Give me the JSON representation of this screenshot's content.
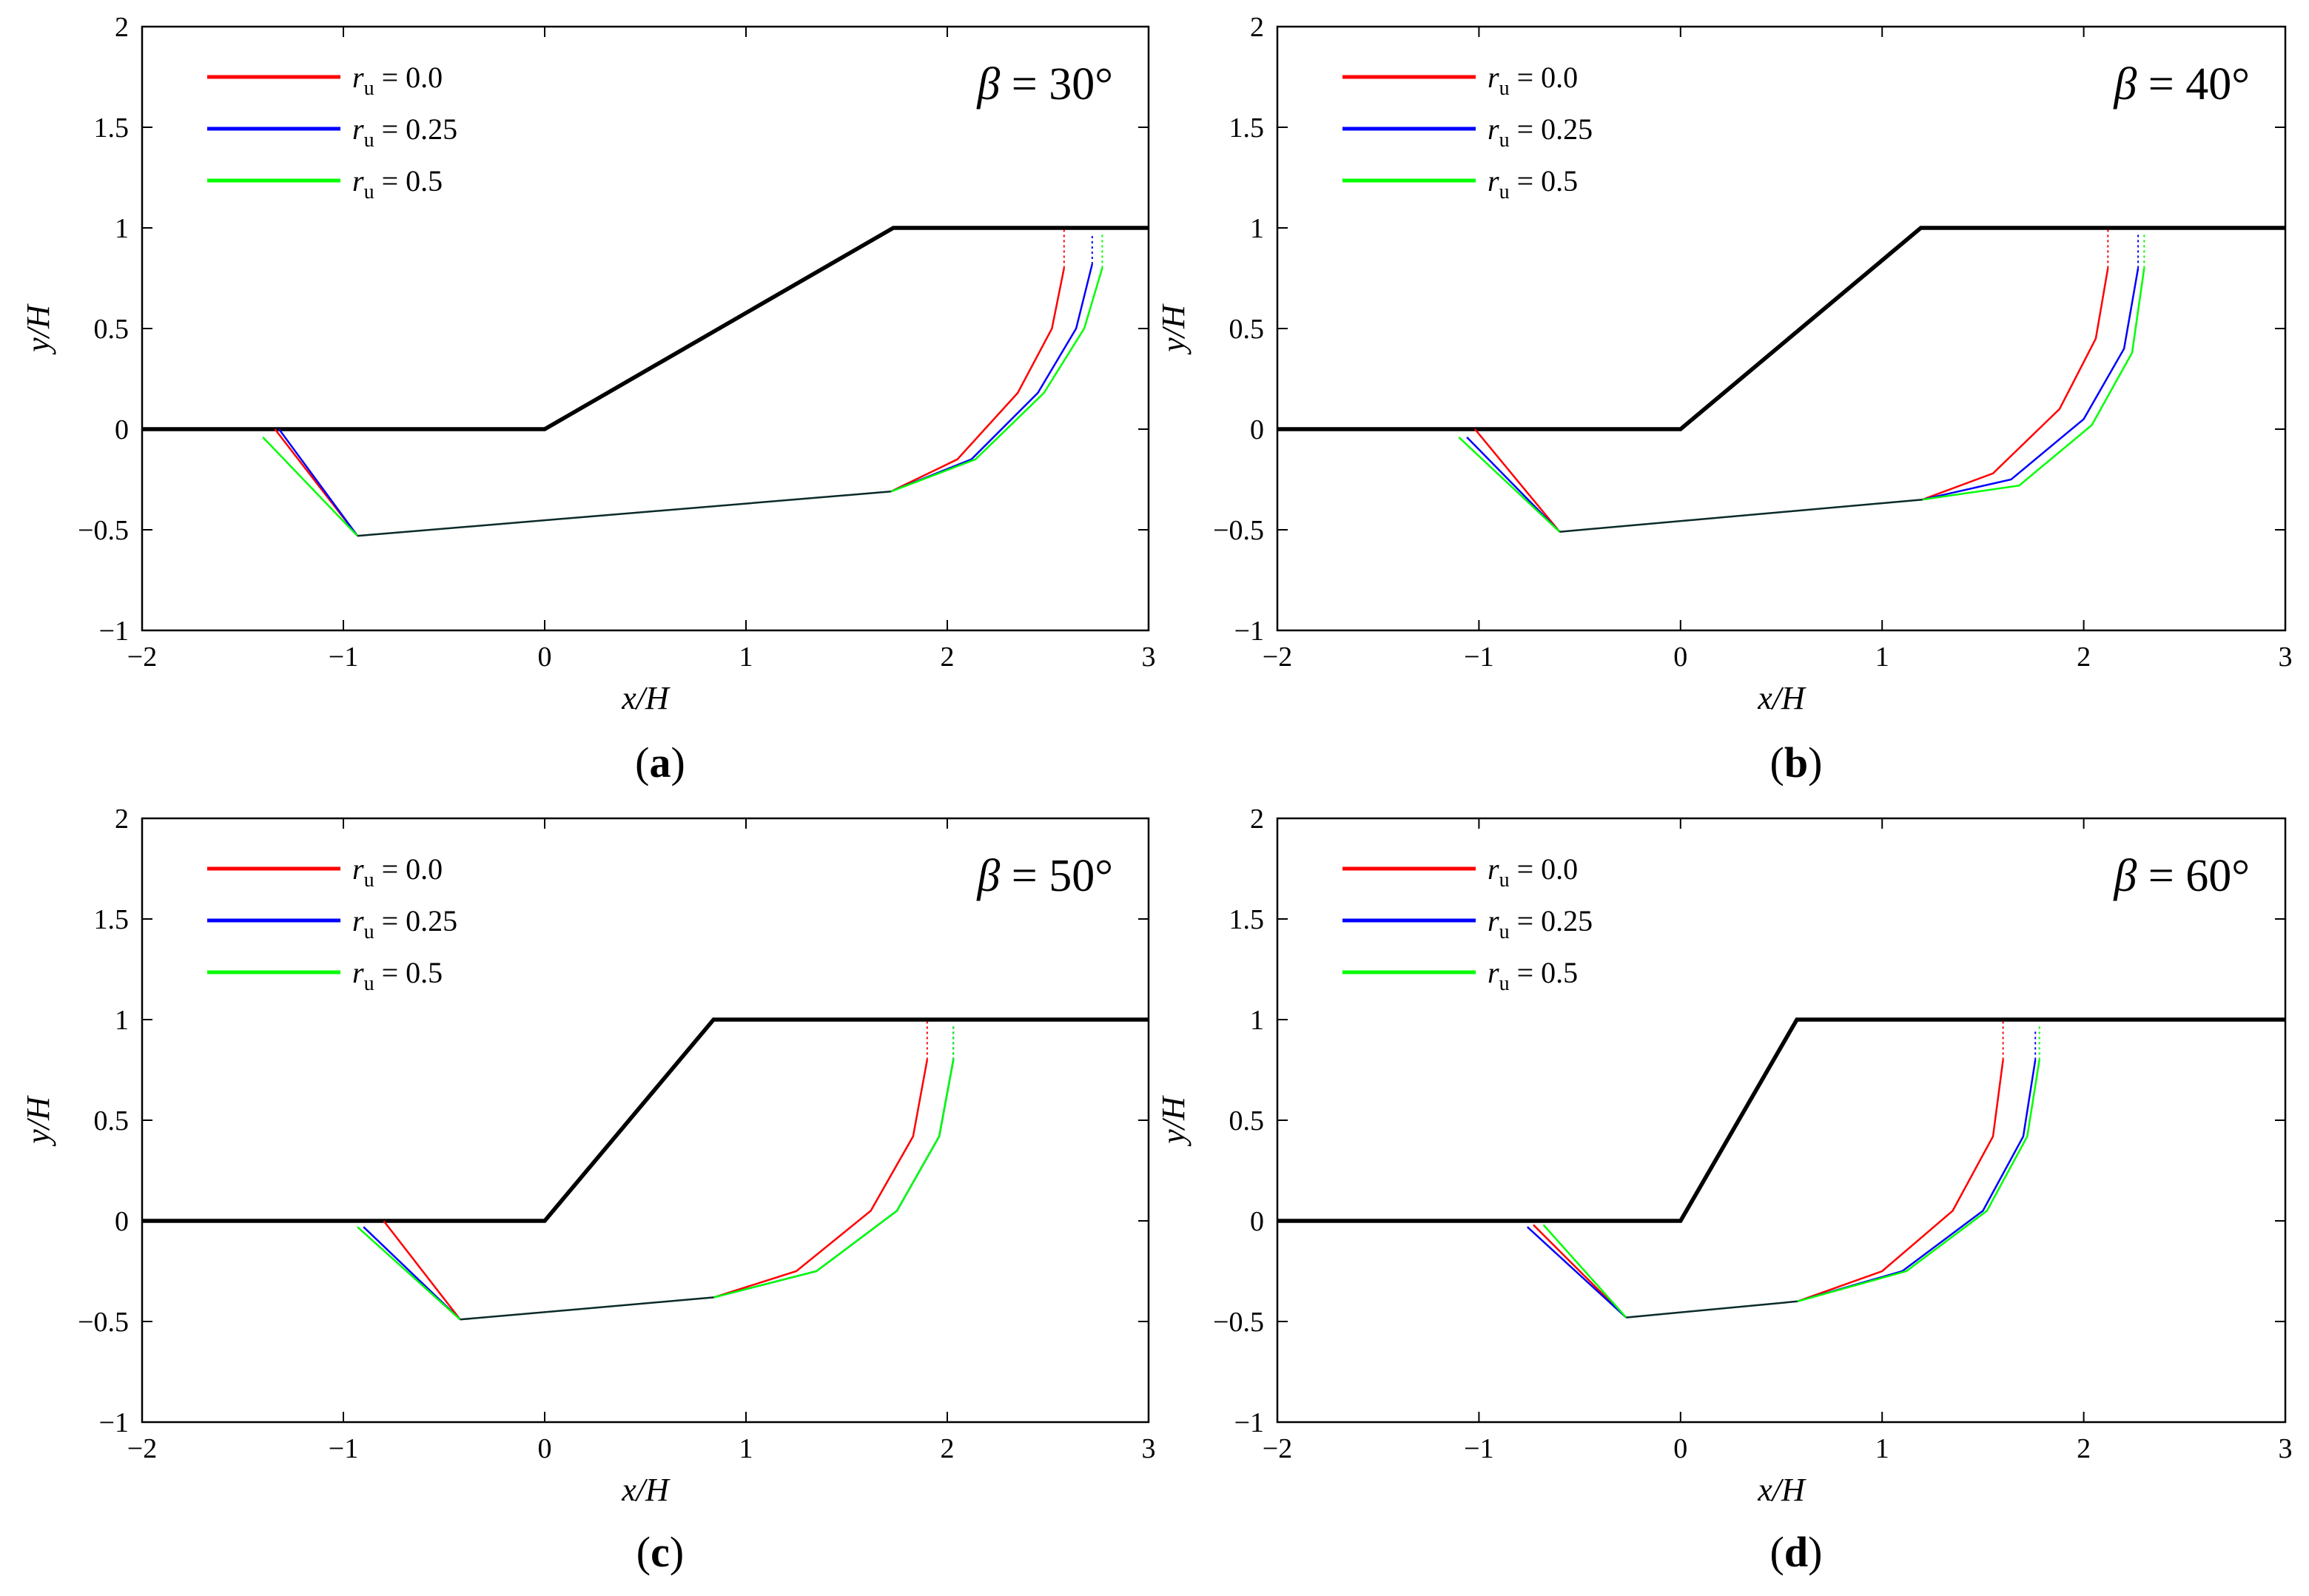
{
  "figure": {
    "panels_meta": {
      "xlabel": "x/H",
      "ylabel": "y/H",
      "xlim": [
        -2,
        3
      ],
      "ylim": [
        -1,
        2
      ],
      "x_ticks": [
        -2,
        -1,
        0,
        1,
        2,
        3
      ],
      "y_ticks": [
        -1,
        -0.5,
        0,
        0.5,
        1,
        1.5,
        2
      ],
      "x_tick_labels": [
        "−2",
        "−1",
        "0",
        "1",
        "2",
        "3"
      ],
      "y_tick_labels": [
        "−1",
        "−0.5",
        "0",
        "0.5",
        "1",
        "1.5",
        "2"
      ]
    },
    "legend": [
      {
        "symbol": "r",
        "subscript": "u",
        "text": " = 0.0",
        "color": "#ff0000"
      },
      {
        "symbol": "r",
        "subscript": "u",
        "text": " = 0.25",
        "color": "#0000ff"
      },
      {
        "symbol": "r",
        "subscript": "u",
        "text": " = 0.5",
        "color": "#00ff00"
      }
    ],
    "colors": {
      "slope": "#000000",
      "ru_0": "#ff0000",
      "ru_025": "#0000ff",
      "ru_05": "#00ff00",
      "overlap": "#0a2a2a"
    }
  },
  "chart_data": [
    {
      "type": "line",
      "panel_label": "(a)",
      "title_symbol": "β",
      "title_value": " = 30°",
      "xlabel": "x/H",
      "ylabel": "y/H",
      "xlim": [
        -2,
        3
      ],
      "ylim": [
        -1,
        2
      ],
      "slope": {
        "x": [
          -2,
          0,
          1.732,
          3
        ],
        "y": [
          0,
          0,
          1,
          1
        ]
      },
      "series": [
        {
          "name": "ru = 0.0",
          "color": "#ff0000",
          "toe_line": {
            "x": [
              -1.34,
              -0.93
            ],
            "y": [
              0,
              -0.53
            ]
          },
          "arc": {
            "x": [
              1.72,
              2.05,
              2.35,
              2.52,
              2.58
            ],
            "y": [
              -0.31,
              -0.15,
              0.18,
              0.5,
              0.8
            ]
          },
          "crack": {
            "x": [
              2.58,
              2.58
            ],
            "y": [
              0.8,
              1.0
            ]
          }
        },
        {
          "name": "ru = 0.25",
          "color": "#0000ff",
          "toe_line": {
            "x": [
              -1.32,
              -0.93
            ],
            "y": [
              0,
              -0.53
            ]
          },
          "arc": {
            "x": [
              1.72,
              2.12,
              2.45,
              2.64,
              2.72
            ],
            "y": [
              -0.31,
              -0.15,
              0.18,
              0.5,
              0.82
            ]
          },
          "crack": {
            "x": [
              2.72,
              2.72
            ],
            "y": [
              0.82,
              0.97
            ]
          }
        },
        {
          "name": "ru = 0.5",
          "color": "#00ff00",
          "toe_line": {
            "x": [
              -1.4,
              -0.93
            ],
            "y": [
              -0.04,
              -0.53
            ]
          },
          "arc": {
            "x": [
              1.72,
              2.14,
              2.48,
              2.68,
              2.77
            ],
            "y": [
              -0.31,
              -0.15,
              0.18,
              0.5,
              0.8
            ]
          },
          "crack": {
            "x": [
              2.77,
              2.77
            ],
            "y": [
              0.8,
              0.97
            ]
          }
        }
      ],
      "slip_base": {
        "x": [
          -0.93,
          1.72
        ],
        "y": [
          -0.53,
          -0.31
        ]
      }
    },
    {
      "type": "line",
      "panel_label": "(b)",
      "title_symbol": "β",
      "title_value": " = 40°",
      "xlabel": "x/H",
      "ylabel": "y/H",
      "xlim": [
        -2,
        3
      ],
      "ylim": [
        -1,
        2
      ],
      "slope": {
        "x": [
          -2,
          0,
          1.192,
          3
        ],
        "y": [
          0,
          0,
          1,
          1
        ]
      },
      "series": [
        {
          "name": "ru = 0.0",
          "color": "#ff0000",
          "toe_line": {
            "x": [
              -1.02,
              -0.6
            ],
            "y": [
              0,
              -0.51
            ]
          },
          "arc": {
            "x": [
              1.2,
              1.55,
              1.88,
              2.06,
              2.12
            ],
            "y": [
              -0.35,
              -0.22,
              0.1,
              0.45,
              0.8
            ]
          },
          "crack": {
            "x": [
              2.12,
              2.12
            ],
            "y": [
              0.8,
              1.0
            ]
          }
        },
        {
          "name": "ru = 0.25",
          "color": "#0000ff",
          "toe_line": {
            "x": [
              -1.06,
              -0.6
            ],
            "y": [
              -0.04,
              -0.51
            ]
          },
          "arc": {
            "x": [
              1.2,
              1.64,
              2.0,
              2.2,
              2.27
            ],
            "y": [
              -0.35,
              -0.25,
              0.05,
              0.4,
              0.8
            ]
          },
          "crack": {
            "x": [
              2.27,
              2.27
            ],
            "y": [
              0.8,
              0.97
            ]
          }
        },
        {
          "name": "ru = 0.5",
          "color": "#00ff00",
          "toe_line": {
            "x": [
              -1.1,
              -0.6
            ],
            "y": [
              -0.04,
              -0.51
            ]
          },
          "arc": {
            "x": [
              1.2,
              1.68,
              2.04,
              2.24,
              2.3
            ],
            "y": [
              -0.35,
              -0.28,
              0.02,
              0.38,
              0.8
            ]
          },
          "crack": {
            "x": [
              2.3,
              2.3
            ],
            "y": [
              0.8,
              0.97
            ]
          }
        }
      ],
      "slip_base": {
        "x": [
          -0.6,
          1.2
        ],
        "y": [
          -0.51,
          -0.35
        ]
      }
    },
    {
      "type": "line",
      "panel_label": "(c)",
      "title_symbol": "β",
      "title_value": " = 50°",
      "xlabel": "x/H",
      "ylabel": "y/H",
      "xlim": [
        -2,
        3
      ],
      "ylim": [
        -1,
        2
      ],
      "slope": {
        "x": [
          -2,
          0,
          0.839,
          3
        ],
        "y": [
          0,
          0,
          1,
          1
        ]
      },
      "series": [
        {
          "name": "ru = 0.0",
          "color": "#ff0000",
          "toe_line": {
            "x": [
              -0.8,
              -0.42
            ],
            "y": [
              0,
              -0.49
            ]
          },
          "arc": {
            "x": [
              0.84,
              1.25,
              1.62,
              1.83,
              1.9
            ],
            "y": [
              -0.38,
              -0.25,
              0.05,
              0.42,
              0.8
            ]
          },
          "crack": {
            "x": [
              1.9,
              1.9
            ],
            "y": [
              0.8,
              1.0
            ]
          }
        },
        {
          "name": "ru = 0.25",
          "color": "#0000ff",
          "toe_line": {
            "x": [
              -0.9,
              -0.42
            ],
            "y": [
              -0.03,
              -0.49
            ]
          },
          "arc": {
            "x": [
              0.84,
              1.35,
              1.75,
              1.96,
              2.03
            ],
            "y": [
              -0.38,
              -0.25,
              0.05,
              0.42,
              0.8
            ]
          },
          "crack": {
            "x": [
              2.03,
              2.03
            ],
            "y": [
              0.8,
              0.97
            ]
          }
        },
        {
          "name": "ru = 0.5",
          "color": "#00ff00",
          "toe_line": {
            "x": [
              -0.93,
              -0.42
            ],
            "y": [
              -0.03,
              -0.49
            ]
          },
          "arc": {
            "x": [
              0.84,
              1.35,
              1.75,
              1.96,
              2.03
            ],
            "y": [
              -0.38,
              -0.25,
              0.05,
              0.42,
              0.8
            ]
          },
          "crack": {
            "x": [
              2.03,
              2.03
            ],
            "y": [
              0.8,
              0.97
            ]
          }
        }
      ],
      "slip_base": {
        "x": [
          -0.42,
          0.84
        ],
        "y": [
          -0.49,
          -0.38
        ]
      }
    },
    {
      "type": "line",
      "panel_label": "(d)",
      "title_symbol": "β",
      "title_value": " = 60°",
      "xlabel": "x/H",
      "ylabel": "y/H",
      "xlim": [
        -2,
        3
      ],
      "ylim": [
        -1,
        2
      ],
      "slope": {
        "x": [
          -2,
          0,
          0.577,
          3
        ],
        "y": [
          0,
          0,
          1,
          1
        ]
      },
      "series": [
        {
          "name": "ru = 0.0",
          "color": "#ff0000",
          "toe_line": {
            "x": [
              -0.73,
              -0.27
            ],
            "y": [
              -0.02,
              -0.48
            ]
          },
          "arc": {
            "x": [
              0.58,
              1.0,
              1.35,
              1.55,
              1.6
            ],
            "y": [
              -0.4,
              -0.25,
              0.05,
              0.42,
              0.8
            ]
          },
          "crack": {
            "x": [
              1.6,
              1.6
            ],
            "y": [
              0.8,
              1.0
            ]
          }
        },
        {
          "name": "ru = 0.25",
          "color": "#0000ff",
          "toe_line": {
            "x": [
              -0.76,
              -0.27
            ],
            "y": [
              -0.03,
              -0.48
            ]
          },
          "arc": {
            "x": [
              0.58,
              1.1,
              1.5,
              1.7,
              1.76
            ],
            "y": [
              -0.4,
              -0.25,
              0.05,
              0.42,
              0.8
            ]
          },
          "crack": {
            "x": [
              1.76,
              1.76
            ],
            "y": [
              0.8,
              0.95
            ]
          }
        },
        {
          "name": "ru = 0.5",
          "color": "#00ff00",
          "toe_line": {
            "x": [
              -0.68,
              -0.27
            ],
            "y": [
              -0.02,
              -0.48
            ]
          },
          "arc": {
            "x": [
              0.58,
              1.12,
              1.52,
              1.72,
              1.78
            ],
            "y": [
              -0.4,
              -0.25,
              0.05,
              0.42,
              0.8
            ]
          },
          "crack": {
            "x": [
              1.78,
              1.78
            ],
            "y": [
              0.8,
              0.97
            ]
          }
        }
      ],
      "slip_base": {
        "x": [
          -0.27,
          0.58
        ],
        "y": [
          -0.48,
          -0.4
        ]
      }
    }
  ]
}
